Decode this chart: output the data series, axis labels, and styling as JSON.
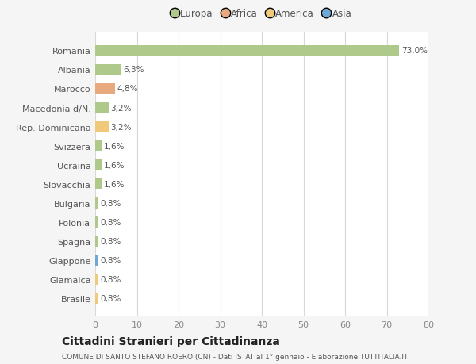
{
  "countries": [
    "Romania",
    "Albania",
    "Marocco",
    "Macedonia d/N.",
    "Rep. Dominicana",
    "Svizzera",
    "Ucraina",
    "Slovacchia",
    "Bulgaria",
    "Polonia",
    "Spagna",
    "Giappone",
    "Giamaica",
    "Brasile"
  ],
  "values": [
    73.0,
    6.3,
    4.8,
    3.2,
    3.2,
    1.6,
    1.6,
    1.6,
    0.8,
    0.8,
    0.8,
    0.8,
    0.8,
    0.8
  ],
  "labels": [
    "73,0%",
    "6,3%",
    "4,8%",
    "3,2%",
    "3,2%",
    "1,6%",
    "1,6%",
    "1,6%",
    "0,8%",
    "0,8%",
    "0,8%",
    "0,8%",
    "0,8%",
    "0,8%"
  ],
  "colors": [
    "#aec98a",
    "#aec98a",
    "#e8a97e",
    "#aec98a",
    "#f0c97a",
    "#aec98a",
    "#aec98a",
    "#aec98a",
    "#aec98a",
    "#aec98a",
    "#aec98a",
    "#6fa8d4",
    "#f0c97a",
    "#f0c97a"
  ],
  "legend_labels": [
    "Europa",
    "Africa",
    "America",
    "Asia"
  ],
  "legend_colors": [
    "#aec98a",
    "#e8a97e",
    "#f0c97a",
    "#6fa8d4"
  ],
  "xlim": [
    0,
    80
  ],
  "xticks": [
    0,
    10,
    20,
    30,
    40,
    50,
    60,
    70,
    80
  ],
  "title": "Cittadini Stranieri per Cittadinanza",
  "subtitle": "COMUNE DI SANTO STEFANO ROERO (CN) - Dati ISTAT al 1° gennaio - Elaborazione TUTTITALIA.IT",
  "bg_color": "#f5f5f5",
  "bar_bg_color": "#ffffff",
  "grid_color": "#d8d8d8"
}
